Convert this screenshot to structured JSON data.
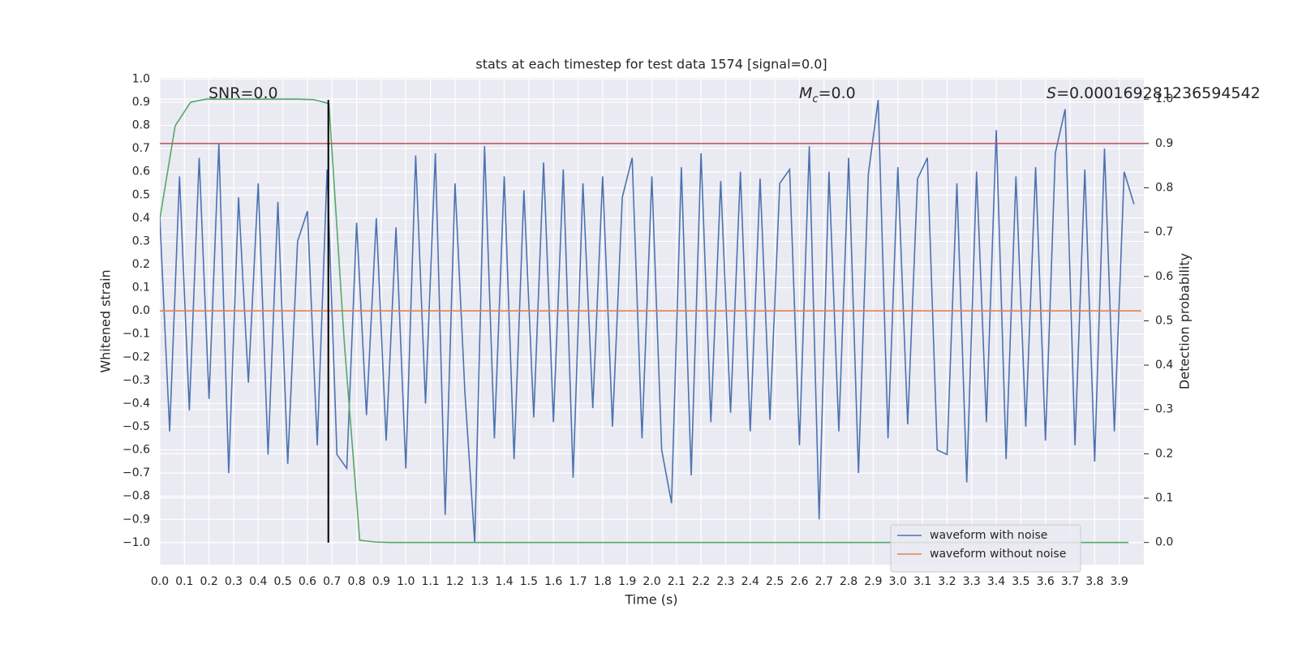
{
  "chart_data": {
    "type": "line",
    "title": "stats at each timestep for test data 1574 [signal=0.0]",
    "xlabel": "Time (s)",
    "ylabel": "Whitened strain",
    "y2label": "Detection probability",
    "grid": true,
    "legend": "lower right",
    "xlim": [
      0,
      4.0
    ],
    "ylim": [
      -1.095,
      1.005
    ],
    "y2lim": [
      -0.05,
      1.048
    ],
    "xticks": [
      {
        "value": 0,
        "label": "0.0"
      },
      {
        "value": 0.1,
        "label": "0.1"
      },
      {
        "value": 0.2,
        "label": "0.2"
      },
      {
        "value": 0.3,
        "label": "0.3"
      },
      {
        "value": 0.4,
        "label": "0.4"
      },
      {
        "value": 0.5,
        "label": "0.5"
      },
      {
        "value": 0.6,
        "label": "0.6"
      },
      {
        "value": 0.7,
        "label": "0.7"
      },
      {
        "value": 0.8,
        "label": "0.8"
      },
      {
        "value": 0.9,
        "label": "0.9"
      },
      {
        "value": 1,
        "label": "1.0"
      },
      {
        "value": 1.1,
        "label": "1.1"
      },
      {
        "value": 1.2,
        "label": "1.2"
      },
      {
        "value": 1.3,
        "label": "1.3"
      },
      {
        "value": 1.4,
        "label": "1.4"
      },
      {
        "value": 1.5,
        "label": "1.5"
      },
      {
        "value": 1.6,
        "label": "1.6"
      },
      {
        "value": 1.7,
        "label": "1.7"
      },
      {
        "value": 1.8,
        "label": "1.8"
      },
      {
        "value": 1.9,
        "label": "1.9"
      },
      {
        "value": 2,
        "label": "2.0"
      },
      {
        "value": 2.1,
        "label": "2.1"
      },
      {
        "value": 2.2,
        "label": "2.2"
      },
      {
        "value": 2.3,
        "label": "2.3"
      },
      {
        "value": 2.4,
        "label": "2.4"
      },
      {
        "value": 2.5,
        "label": "2.5"
      },
      {
        "value": 2.6,
        "label": "2.6"
      },
      {
        "value": 2.7,
        "label": "2.7"
      },
      {
        "value": 2.8,
        "label": "2.8"
      },
      {
        "value": 2.9,
        "label": "2.9"
      },
      {
        "value": 3,
        "label": "3.0"
      },
      {
        "value": 3.1,
        "label": "3.1"
      },
      {
        "value": 3.2,
        "label": "3.2"
      },
      {
        "value": 3.3,
        "label": "3.3"
      },
      {
        "value": 3.4,
        "label": "3.4"
      },
      {
        "value": 3.5,
        "label": "3.5"
      },
      {
        "value": 3.6,
        "label": "3.6"
      },
      {
        "value": 3.7,
        "label": "3.7"
      },
      {
        "value": 3.8,
        "label": "3.8"
      },
      {
        "value": 3.9,
        "label": "3.9"
      }
    ],
    "yticks": [
      {
        "value": -1,
        "label": "−1.0"
      },
      {
        "value": -0.9,
        "label": "−0.9"
      },
      {
        "value": -0.8,
        "label": "−0.8"
      },
      {
        "value": -0.7,
        "label": "−0.7"
      },
      {
        "value": -0.6,
        "label": "−0.6"
      },
      {
        "value": -0.5,
        "label": "−0.5"
      },
      {
        "value": -0.4,
        "label": "−0.4"
      },
      {
        "value": -0.3,
        "label": "−0.3"
      },
      {
        "value": -0.2,
        "label": "−0.2"
      },
      {
        "value": -0.1,
        "label": "−0.1"
      },
      {
        "value": 0,
        "label": "0.0"
      },
      {
        "value": 0.1,
        "label": "0.1"
      },
      {
        "value": 0.2,
        "label": "0.2"
      },
      {
        "value": 0.3,
        "label": "0.3"
      },
      {
        "value": 0.4,
        "label": "0.4"
      },
      {
        "value": 0.5,
        "label": "0.5"
      },
      {
        "value": 0.6,
        "label": "0.6"
      },
      {
        "value": 0.7,
        "label": "0.7"
      },
      {
        "value": 0.8,
        "label": "0.8"
      },
      {
        "value": 0.9,
        "label": "0.9"
      },
      {
        "value": 1,
        "label": "1.0"
      }
    ],
    "y2ticks": [
      {
        "value": 0,
        "label": "0.0"
      },
      {
        "value": 0.1,
        "label": "0.1"
      },
      {
        "value": 0.2,
        "label": "0.2"
      },
      {
        "value": 0.3,
        "label": "0.3"
      },
      {
        "value": 0.4,
        "label": "0.4"
      },
      {
        "value": 0.5,
        "label": "0.5"
      },
      {
        "value": 0.6,
        "label": "0.6"
      },
      {
        "value": 0.7,
        "label": "0.7"
      },
      {
        "value": 0.8,
        "label": "0.8"
      },
      {
        "value": 0.9,
        "label": "0.9"
      },
      {
        "value": 1,
        "label": "1.0"
      }
    ],
    "series": [
      {
        "name": "waveform with noise",
        "color": "#4c72b0",
        "x": [
          0,
          0.04,
          0.08,
          0.12,
          0.16,
          0.2,
          0.24,
          0.28,
          0.32,
          0.36,
          0.4,
          0.44,
          0.48,
          0.52,
          0.56,
          0.6,
          0.64,
          0.68,
          0.72,
          0.76,
          0.8,
          0.84,
          0.88,
          0.92,
          0.96,
          1,
          1.04,
          1.08,
          1.12,
          1.16,
          1.2,
          1.24,
          1.28,
          1.32,
          1.36,
          1.4,
          1.44,
          1.48,
          1.52,
          1.56,
          1.6,
          1.64,
          1.68,
          1.72,
          1.76,
          1.8,
          1.84,
          1.88,
          1.92,
          1.96,
          2,
          2.04,
          2.08,
          2.12,
          2.16,
          2.2,
          2.24,
          2.28,
          2.32,
          2.36,
          2.4,
          2.44,
          2.48,
          2.52,
          2.56,
          2.6,
          2.64,
          2.68,
          2.72,
          2.76,
          2.8,
          2.84,
          2.88,
          2.92,
          2.96,
          3,
          3.04,
          3.08,
          3.12,
          3.16,
          3.2,
          3.24,
          3.28,
          3.32,
          3.36,
          3.4,
          3.44,
          3.48,
          3.52,
          3.56,
          3.6,
          3.64,
          3.68,
          3.72,
          3.76,
          3.8,
          3.84,
          3.88,
          3.92,
          3.96
        ],
        "values": [
          0.4,
          -0.52,
          0.58,
          -0.43,
          0.66,
          -0.38,
          0.72,
          -0.7,
          0.49,
          -0.31,
          0.55,
          -0.62,
          0.47,
          -0.66,
          0.3,
          0.43,
          -0.58,
          0.61,
          -0.62,
          -0.68,
          0.38,
          -0.45,
          0.4,
          -0.56,
          0.36,
          -0.68,
          0.67,
          -0.4,
          0.68,
          -0.88,
          0.55,
          -0.35,
          -1.0,
          0.71,
          -0.55,
          0.58,
          -0.64,
          0.52,
          -0.46,
          0.64,
          -0.48,
          0.61,
          -0.72,
          0.55,
          -0.42,
          0.58,
          -0.5,
          0.49,
          0.66,
          -0.55,
          0.58,
          -0.6,
          -0.83,
          0.62,
          -0.71,
          0.68,
          -0.48,
          0.56,
          -0.44,
          0.6,
          -0.52,
          0.57,
          -0.47,
          0.55,
          0.61,
          -0.58,
          0.71,
          -0.9,
          0.6,
          -0.52,
          0.66,
          -0.7,
          0.59,
          0.91,
          -0.55,
          0.62,
          -0.49,
          0.57,
          0.66,
          -0.6,
          -0.62,
          0.55,
          -0.74,
          0.6,
          -0.48,
          0.78,
          -0.64,
          0.58,
          -0.5,
          0.62,
          -0.56,
          0.68,
          0.87,
          -0.58,
          0.61,
          -0.65,
          0.7,
          -0.52,
          0.6,
          0.46
        ]
      },
      {
        "name": "waveform without noise",
        "color": "#dd8452",
        "x": [
          0,
          3.99
        ],
        "values": [
          0,
          0
        ]
      },
      {
        "color": "#55a868",
        "axis": "y2",
        "x": [
          0,
          0.0625,
          0.125,
          0.1875,
          0.25,
          0.3125,
          0.375,
          0.4375,
          0.5,
          0.5625,
          0.625,
          0.6875,
          0.75,
          0.8125,
          0.875,
          0.9375,
          1,
          1.0625,
          1.125,
          1.1875,
          1.25,
          1.3125,
          1.375,
          1.4375,
          1.5,
          1.5625,
          1.625,
          1.6875,
          1.75,
          1.8125,
          1.875,
          1.9375,
          2,
          2.0625,
          2.125,
          2.1875,
          2.25,
          2.3125,
          2.375,
          2.4375,
          2.5,
          2.5625,
          2.625,
          2.6875,
          2.75,
          2.8125,
          2.875,
          2.9375,
          3,
          3.0625,
          3.125,
          3.1875,
          3.25,
          3.3125,
          3.375,
          3.4375,
          3.5,
          3.5625,
          3.625,
          3.6875,
          3.75,
          3.8125,
          3.875,
          3.9375
        ],
        "values": [
          0.73,
          0.94,
          0.993,
          1.0,
          1.0,
          1.0,
          1.0,
          1.0,
          1.0,
          1.0,
          0.999,
          0.99,
          0.45,
          0.005,
          0.001,
          0,
          0,
          0,
          0,
          0,
          0,
          0,
          0,
          0,
          0,
          0,
          0,
          0,
          0,
          0,
          0,
          0,
          0,
          0,
          0,
          0,
          0,
          0,
          0,
          0,
          0,
          0,
          0,
          0,
          0,
          0,
          0,
          0,
          0,
          0,
          0,
          0,
          0,
          0,
          0,
          0,
          0,
          0,
          0,
          0,
          0,
          0,
          0,
          0
        ]
      }
    ],
    "threshold": {
      "value": 0.9,
      "axis": "y2",
      "color": "#c44e52"
    },
    "marker_line": {
      "x": 0.685,
      "y": [
        -1.0,
        0.91
      ],
      "color": "#000000"
    },
    "annotations": [
      {
        "text": "SNR=0.0"
      },
      {
        "symbol": "M",
        "subscript": "c",
        "text": "=0.0"
      },
      {
        "symbol": "S",
        "text": "=0.000169281236594542"
      }
    ]
  }
}
